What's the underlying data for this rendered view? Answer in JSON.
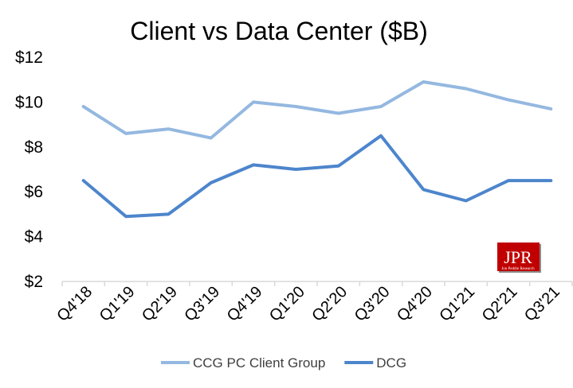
{
  "chart_data": {
    "type": "line",
    "title": "Client vs Data Center ($B)",
    "xlabel": "",
    "ylabel": "",
    "categories": [
      "Q4'18",
      "Q1'19",
      "Q2'19",
      "Q3'19",
      "Q4'19",
      "Q1'20",
      "Q2'20",
      "Q3'20",
      "Q4'20",
      "Q1'21",
      "Q2'21",
      "Q3'21"
    ],
    "series": [
      {
        "name": "CCG PC Client Group",
        "color": "#94B8E0",
        "values": [
          9.8,
          8.6,
          8.8,
          8.4,
          10.0,
          9.8,
          9.5,
          9.8,
          10.9,
          10.6,
          10.1,
          9.7
        ]
      },
      {
        "name": "DCG",
        "color": "#4D85CC",
        "values": [
          6.5,
          4.9,
          5.0,
          6.4,
          7.2,
          7.0,
          7.15,
          8.5,
          6.1,
          5.6,
          6.5,
          6.5
        ]
      }
    ],
    "ylim": [
      2,
      12
    ],
    "yticks": [
      "$2",
      "$4",
      "$6",
      "$8",
      "$10",
      "$12"
    ],
    "grid": false,
    "legend_position": "bottom"
  },
  "logo": {
    "text": "JPR",
    "subtext": "Jon Peddie Research"
  }
}
